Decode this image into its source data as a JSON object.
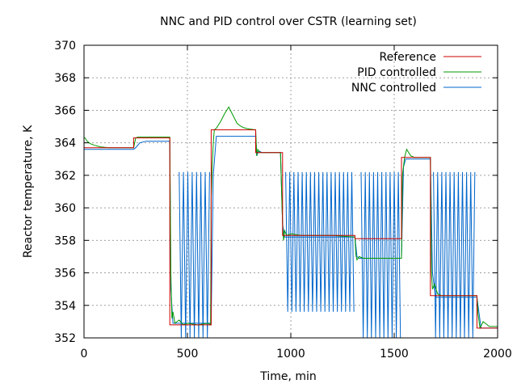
{
  "chart_data": {
    "type": "line",
    "title": "NNC and PID control over CSTR (learning set)",
    "xlabel": "Time, min",
    "ylabel": "Reactor temperature, K",
    "xlim": [
      0,
      2000
    ],
    "ylim": [
      352,
      370
    ],
    "x_ticks": [
      0,
      500,
      1000,
      1500,
      2000
    ],
    "y_ticks": [
      352,
      354,
      356,
      358,
      360,
      362,
      364,
      366,
      368,
      370
    ],
    "grid": true,
    "legend_position": "top-right",
    "series": [
      {
        "name": "Reference",
        "color": "#cc0000",
        "kind": "step",
        "x": [
          0,
          240,
          415,
          615,
          830,
          960,
          1310,
          1535,
          1675,
          1900,
          2000
        ],
        "y": [
          363.7,
          364.3,
          352.8,
          364.8,
          363.4,
          358.3,
          358.1,
          363.1,
          354.6,
          352.6,
          352.6
        ]
      },
      {
        "name": "PID controlled",
        "color": "#009900",
        "kind": "line",
        "x": [
          0,
          5,
          15,
          30,
          50,
          80,
          120,
          200,
          240,
          250,
          260,
          300,
          415,
          420,
          425,
          430,
          440,
          460,
          480,
          500,
          550,
          600,
          612,
          615,
          620,
          625,
          630,
          640,
          660,
          680,
          700,
          720,
          740,
          760,
          780,
          800,
          830,
          835,
          840,
          850,
          870,
          900,
          950,
          960,
          965,
          970,
          980,
          1000,
          1050,
          1100,
          1200,
          1310,
          1315,
          1320,
          1330,
          1350,
          1400,
          1535,
          1540,
          1550,
          1560,
          1580,
          1600,
          1620,
          1675,
          1680,
          1685,
          1695,
          1710,
          1730,
          1760,
          1800,
          1900,
          1905,
          1915,
          1930,
          1960,
          2000
        ],
        "y": [
          364.3,
          364.3,
          364.1,
          363.95,
          363.85,
          363.75,
          363.7,
          363.7,
          363.7,
          364.3,
          364.35,
          364.35,
          364.35,
          356.0,
          353.2,
          353.6,
          352.9,
          353.1,
          352.8,
          352.9,
          352.8,
          352.9,
          352.8,
          360.5,
          362.5,
          364.0,
          364.8,
          364.9,
          365.3,
          365.8,
          366.2,
          365.7,
          365.2,
          365.0,
          364.9,
          364.85,
          364.8,
          363.2,
          363.6,
          363.4,
          363.4,
          363.4,
          363.4,
          359.0,
          358.0,
          358.6,
          358.3,
          358.4,
          358.3,
          358.3,
          358.3,
          358.2,
          357.1,
          356.8,
          357.0,
          356.9,
          356.9,
          356.9,
          362.0,
          363.1,
          363.6,
          363.2,
          363.1,
          363.1,
          363.1,
          356.0,
          355.0,
          355.3,
          354.7,
          354.6,
          354.6,
          354.6,
          354.6,
          353.5,
          352.6,
          353.0,
          352.7,
          352.7
        ]
      },
      {
        "name": "NNC controlled",
        "color": "#0066cc",
        "kind": "line",
        "x": [
          0,
          240,
          250,
          270,
          300,
          415,
          420,
          430,
          615,
          625,
          640,
          830,
          835,
          845,
          860,
          870,
          950,
          960,
          970,
          1310,
          1320,
          1330,
          1535,
          1545,
          1555,
          1675,
          1685,
          1700,
          1900,
          1920,
          2000
        ],
        "y": [
          363.6,
          363.6,
          363.7,
          364.0,
          364.1,
          364.1,
          355.0,
          352.9,
          352.9,
          362.0,
          364.4,
          364.4,
          363.2,
          363.5,
          363.4,
          363.4,
          363.4,
          359.0,
          358.2,
          358.2,
          357.0,
          356.9,
          356.9,
          362.5,
          363.0,
          363.0,
          356.0,
          354.5,
          354.5,
          352.6,
          352.6
        ]
      }
    ],
    "oscillations": [
      {
        "series": "NNC controlled",
        "x_start": 460,
        "x_end": 610,
        "period": 21,
        "min": 352,
        "max": 362.2
      },
      {
        "series": "NNC controlled",
        "x_start": 975,
        "x_end": 1305,
        "period": 20,
        "min": 353.6,
        "max": 362.2
      },
      {
        "series": "NNC controlled",
        "x_start": 1340,
        "x_end": 1530,
        "period": 20,
        "min": 352,
        "max": 362.2
      },
      {
        "series": "NNC controlled",
        "x_start": 1690,
        "x_end": 1898,
        "period": 20,
        "min": 352,
        "max": 362.2
      }
    ]
  }
}
